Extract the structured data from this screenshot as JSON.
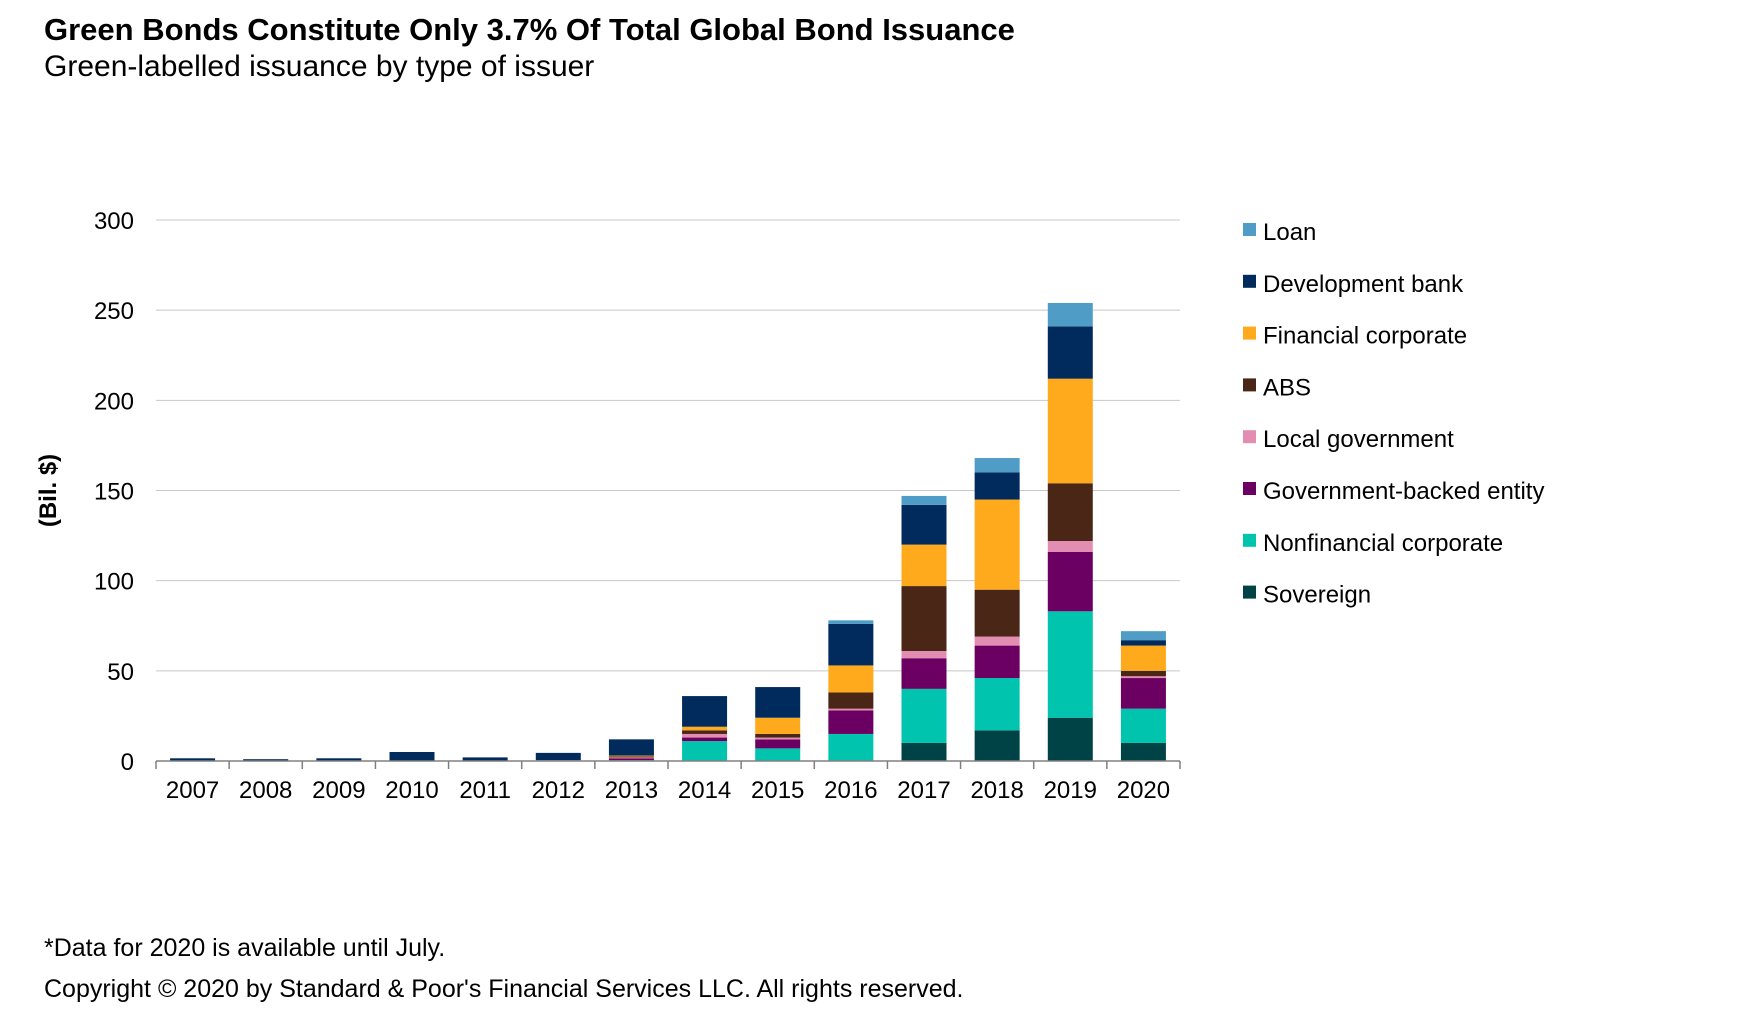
{
  "title": "Green Bonds Constitute Only 3.7% Of Total Global Bond Issuance",
  "subtitle": "Green-labelled issuance by type of issuer",
  "footnote": "*Data for 2020 is available until July.",
  "copyright": "Copyright © 2020 by Standard & Poor's Financial Services LLC. All rights reserved.",
  "chart_data": {
    "type": "bar",
    "stacked": true,
    "title": "Green-labelled issuance by type of issuer",
    "xlabel": "",
    "ylabel": "(Bil. $)",
    "ylim": [
      0,
      300
    ],
    "yticks": [
      0,
      50,
      100,
      150,
      200,
      250,
      300
    ],
    "grid": true,
    "legend_position": "right",
    "categories": [
      "2007",
      "2008",
      "2009",
      "2010",
      "2011",
      "2012",
      "2013",
      "2014",
      "2015",
      "2016",
      "2017",
      "2018",
      "2019",
      "2020"
    ],
    "series": [
      {
        "name": "Sovereign",
        "color": "#004346",
        "values": [
          0,
          0,
          0,
          0,
          0,
          0,
          0,
          0,
          0,
          0,
          10,
          17,
          24,
          10
        ]
      },
      {
        "name": "Nonfinancial corporate",
        "color": "#00C4AE",
        "values": [
          0,
          0,
          0,
          0,
          0,
          0,
          0.5,
          11,
          7,
          15,
          30,
          29,
          59,
          19
        ]
      },
      {
        "name": "Government-backed entity",
        "color": "#6C0062",
        "values": [
          0,
          0,
          0,
          0,
          0,
          0.3,
          1,
          2,
          5,
          13,
          17,
          18,
          33,
          17
        ]
      },
      {
        "name": "Local government",
        "color": "#E48DB3",
        "values": [
          0,
          0,
          0,
          0,
          0,
          0.2,
          0.5,
          2,
          1,
          1,
          4,
          5,
          6,
          1
        ]
      },
      {
        "name": "ABS",
        "color": "#4A2616",
        "values": [
          0,
          0,
          0,
          0,
          0,
          0,
          0.5,
          2,
          2,
          9,
          36,
          26,
          32,
          3
        ]
      },
      {
        "name": "Financial corporate",
        "color": "#FFAA1C",
        "values": [
          0,
          0,
          0,
          0,
          0,
          0,
          0.5,
          2,
          9,
          15,
          23,
          50,
          58,
          14
        ]
      },
      {
        "name": "Development bank",
        "color": "#002B5C",
        "values": [
          1.5,
          1,
          1.5,
          5,
          2,
          4,
          9,
          17,
          17,
          23,
          22,
          15,
          29,
          3
        ]
      },
      {
        "name": "Loan",
        "color": "#4F9DC7",
        "values": [
          0,
          0,
          0,
          0,
          0,
          0,
          0,
          0,
          0,
          2,
          5,
          8,
          13,
          5
        ]
      }
    ],
    "legend_order": [
      "Loan",
      "Development bank",
      "Financial corporate",
      "ABS",
      "Local government",
      "Government-backed entity",
      "Nonfinancial corporate",
      "Sovereign"
    ]
  }
}
